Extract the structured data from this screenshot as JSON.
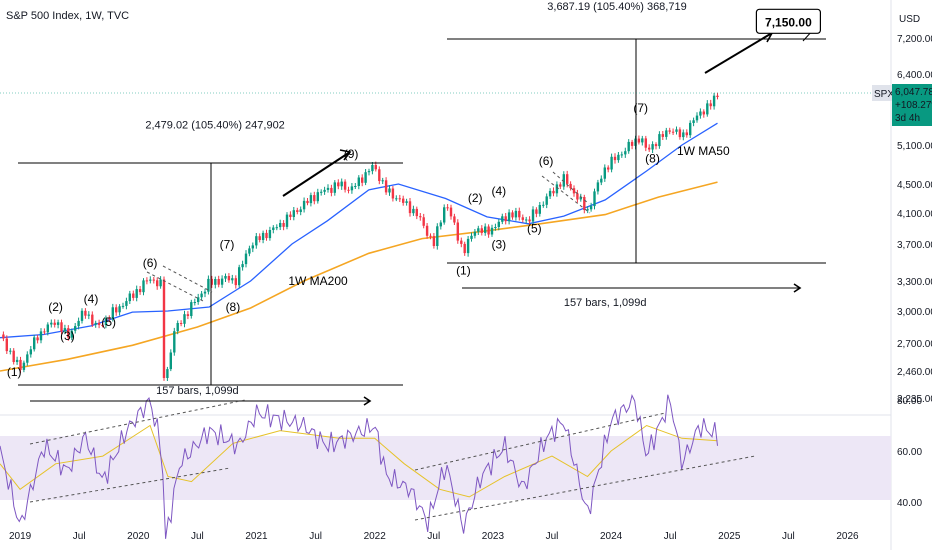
{
  "header": {
    "title": "S&P 500 Index, 1W, TVC",
    "currency": "USD"
  },
  "price_tag": {
    "symbol": "SPX",
    "price": "6,047.78",
    "change": "+108.27%",
    "timer": "3d 4h"
  },
  "colors": {
    "bull": "#089981",
    "bear": "#f23645",
    "ma50": "#2962ff",
    "ma200": "#f5a623",
    "rsi": "#7e57c2",
    "rsi_ma": "#e6c229",
    "rsi_band": "#ede7f6",
    "target_bg": "#ffffff"
  },
  "chart_data": {
    "type": "line",
    "title": "S&P 500 Index, 1W, TVC",
    "x_ticks": [
      "2019",
      "Jul",
      "2020",
      "Jul",
      "2021",
      "Jul",
      "2022",
      "Jul",
      "2023",
      "Jul",
      "2024",
      "Jul",
      "2025",
      "Jul",
      "2026",
      "Jul"
    ],
    "y_ticks": [
      "7,200.00",
      "6,400.00",
      "5,100.00",
      "4,500.00",
      "4,100.00",
      "3,700.00",
      "3,300.00",
      "3,000.00",
      "2,700.00",
      "2,460.00",
      "2,235.00"
    ],
    "price_levels": [
      7200,
      6400,
      5100,
      4500,
      4100,
      3700,
      3300,
      3000,
      2700,
      2460,
      2235
    ],
    "ylim": [
      2150,
      7600
    ],
    "rsi_ticks": [
      "80.00",
      "60.00",
      "40.00",
      "20.00"
    ],
    "rsi_levels": [
      80,
      60,
      40,
      20
    ],
    "rsi_ylim": [
      15,
      85
    ],
    "series": [
      {
        "name": "1W MA50",
        "points": [
          [
            2018.83,
            2750
          ],
          [
            2019.2,
            2780
          ],
          [
            2019.6,
            2860
          ],
          [
            2019.95,
            2990
          ],
          [
            2020.25,
            3000
          ],
          [
            2020.6,
            3040
          ],
          [
            2020.95,
            3300
          ],
          [
            2021.3,
            3700
          ],
          [
            2021.6,
            4000
          ],
          [
            2021.95,
            4420
          ],
          [
            2022.2,
            4500
          ],
          [
            2022.6,
            4300
          ],
          [
            2022.95,
            4050
          ],
          [
            2023.3,
            3960
          ],
          [
            2023.6,
            4060
          ],
          [
            2023.95,
            4280
          ],
          [
            2024.3,
            4700
          ],
          [
            2024.6,
            5100
          ],
          [
            2024.9,
            5500
          ]
        ]
      },
      {
        "name": "1W MA200",
        "points": [
          [
            2018.83,
            2460
          ],
          [
            2019.4,
            2560
          ],
          [
            2019.95,
            2680
          ],
          [
            2020.5,
            2850
          ],
          [
            2020.95,
            3030
          ],
          [
            2021.4,
            3300
          ],
          [
            2021.95,
            3600
          ],
          [
            2022.4,
            3770
          ],
          [
            2022.95,
            3870
          ],
          [
            2023.4,
            3960
          ],
          [
            2023.95,
            4080
          ],
          [
            2024.4,
            4320
          ],
          [
            2024.9,
            4530
          ]
        ]
      },
      {
        "name": "SPX",
        "points": [
          [
            2018.83,
            2780
          ],
          [
            2018.95,
            2550
          ],
          [
            2019.0,
            2480
          ],
          [
            2019.15,
            2770
          ],
          [
            2019.3,
            2910
          ],
          [
            2019.4,
            2760
          ],
          [
            2019.55,
            3000
          ],
          [
            2019.65,
            2840
          ],
          [
            2019.75,
            2950
          ],
          [
            2019.9,
            3100
          ],
          [
            2020.1,
            3330
          ],
          [
            2020.2,
            3250
          ],
          [
            2020.22,
            2300
          ],
          [
            2020.3,
            2800
          ],
          [
            2020.45,
            3050
          ],
          [
            2020.6,
            3280
          ],
          [
            2020.75,
            3330
          ],
          [
            2020.82,
            3300
          ],
          [
            2020.95,
            3700
          ],
          [
            2021.2,
            3950
          ],
          [
            2021.5,
            4350
          ],
          [
            2021.7,
            4500
          ],
          [
            2021.8,
            4420
          ],
          [
            2021.99,
            4780
          ],
          [
            2022.1,
            4400
          ],
          [
            2022.2,
            4300
          ],
          [
            2022.35,
            4100
          ],
          [
            2022.5,
            3700
          ],
          [
            2022.6,
            4250
          ],
          [
            2022.75,
            3600
          ],
          [
            2022.85,
            3900
          ],
          [
            2022.95,
            3850
          ],
          [
            2023.15,
            4100
          ],
          [
            2023.3,
            4000
          ],
          [
            2023.45,
            4300
          ],
          [
            2023.6,
            4580
          ],
          [
            2023.8,
            4120
          ],
          [
            2023.95,
            4750
          ],
          [
            2024.1,
            5000
          ],
          [
            2024.25,
            5250
          ],
          [
            2024.3,
            5000
          ],
          [
            2024.5,
            5400
          ],
          [
            2024.6,
            5250
          ],
          [
            2024.75,
            5700
          ],
          [
            2024.83,
            5800
          ],
          [
            2024.9,
            6047
          ]
        ]
      },
      {
        "name": "RSI",
        "points": [
          [
            2018.83,
            60
          ],
          [
            2018.92,
            45
          ],
          [
            2019.0,
            30
          ],
          [
            2019.2,
            62
          ],
          [
            2019.4,
            52
          ],
          [
            2019.55,
            66
          ],
          [
            2019.7,
            48
          ],
          [
            2019.9,
            68
          ],
          [
            2020.1,
            80
          ],
          [
            2020.2,
            60
          ],
          [
            2020.23,
            25
          ],
          [
            2020.35,
            55
          ],
          [
            2020.6,
            68
          ],
          [
            2020.85,
            62
          ],
          [
            2021.0,
            75
          ],
          [
            2021.4,
            70
          ],
          [
            2021.6,
            62
          ],
          [
            2021.75,
            65
          ],
          [
            2022.0,
            70
          ],
          [
            2022.1,
            50
          ],
          [
            2022.3,
            45
          ],
          [
            2022.45,
            32
          ],
          [
            2022.6,
            55
          ],
          [
            2022.75,
            30
          ],
          [
            2022.9,
            50
          ],
          [
            2023.1,
            62
          ],
          [
            2023.25,
            45
          ],
          [
            2023.45,
            65
          ],
          [
            2023.6,
            72
          ],
          [
            2023.8,
            35
          ],
          [
            2024.0,
            72
          ],
          [
            2024.2,
            80
          ],
          [
            2024.3,
            58
          ],
          [
            2024.5,
            80
          ],
          [
            2024.6,
            55
          ],
          [
            2024.75,
            70
          ],
          [
            2024.9,
            66
          ]
        ]
      },
      {
        "name": "RSI MA",
        "points": [
          [
            2018.83,
            55
          ],
          [
            2019.0,
            45
          ],
          [
            2019.3,
            55
          ],
          [
            2019.7,
            58
          ],
          [
            2020.1,
            70
          ],
          [
            2020.25,
            50
          ],
          [
            2020.45,
            48
          ],
          [
            2020.8,
            63
          ],
          [
            2021.2,
            68
          ],
          [
            2021.7,
            65
          ],
          [
            2022.0,
            65
          ],
          [
            2022.25,
            55
          ],
          [
            2022.55,
            45
          ],
          [
            2022.8,
            42
          ],
          [
            2023.1,
            50
          ],
          [
            2023.5,
            58
          ],
          [
            2023.8,
            50
          ],
          [
            2024.0,
            60
          ],
          [
            2024.3,
            70
          ],
          [
            2024.6,
            65
          ],
          [
            2024.9,
            64
          ]
        ]
      }
    ],
    "annotations": {
      "waves": [
        {
          "label": "(1)",
          "x": 2018.95,
          "p": 2420
        },
        {
          "label": "(2)",
          "x": 2019.3,
          "p": 3000
        },
        {
          "label": "(3)",
          "x": 2019.4,
          "p": 2730
        },
        {
          "label": "(4)",
          "x": 2019.6,
          "p": 3080
        },
        {
          "label": "(5)",
          "x": 2019.75,
          "p": 2860
        },
        {
          "label": "(6)",
          "x": 2020.1,
          "p": 3450
        },
        {
          "label": "(7)",
          "x": 2020.75,
          "p": 3650
        },
        {
          "label": "(8)",
          "x": 2020.8,
          "p": 3000
        },
        {
          "label": "(9)",
          "x": 2021.8,
          "p": 4900
        },
        {
          "label": "(1)",
          "x": 2022.75,
          "p": 3370
        },
        {
          "label": "(2)",
          "x": 2022.85,
          "p": 4250
        },
        {
          "label": "(3)",
          "x": 2023.05,
          "p": 3650
        },
        {
          "label": "(4)",
          "x": 2023.05,
          "p": 4350
        },
        {
          "label": "(5)",
          "x": 2023.35,
          "p": 3850
        },
        {
          "label": "(6)",
          "x": 2023.45,
          "p": 4790
        },
        {
          "label": "(7)",
          "x": 2024.25,
          "p": 5700
        },
        {
          "label": "(8)",
          "x": 2024.35,
          "p": 4830
        },
        {
          "label": "(9)",
          "x": 2025.35,
          "p": 7480
        }
      ],
      "ma_labels": [
        {
          "label": "1W MA50",
          "x": 2024.78,
          "p": 4950
        },
        {
          "label": "1W MA200",
          "x": 2021.52,
          "p": 3260
        }
      ],
      "measures": [
        {
          "label": "2,479.02 (105.40%) 247,902",
          "x": 2020.65,
          "p": 5400
        },
        {
          "label": "3,687.19 (105.40%) 368,719",
          "x": 2024.05,
          "p": 7820
        },
        {
          "label": "157 bars, 1,099d",
          "x": 2020.5,
          "p": 2270
        },
        {
          "label": "157 bars, 1,099d",
          "x": 2023.95,
          "p": 3050
        }
      ],
      "target": {
        "label": "7,150.00",
        "x": 2025.5,
        "p": 7150
      }
    }
  }
}
